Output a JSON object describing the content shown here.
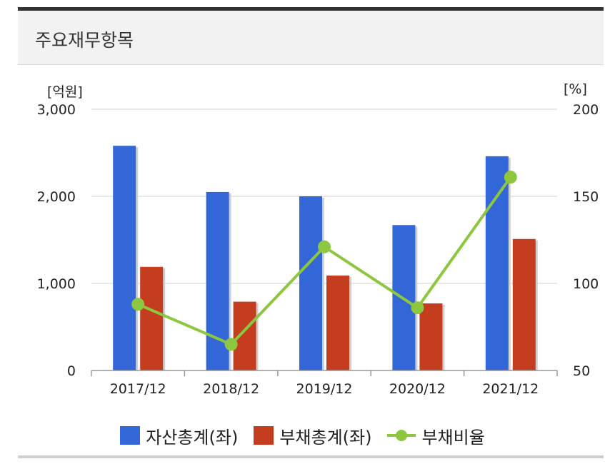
{
  "header": {
    "title": "주요재무항목"
  },
  "colors": {
    "asset": "#3366d6",
    "liability": "#c43d1f",
    "ratio": "#8dc63f"
  },
  "chart_data": {
    "type": "bar",
    "categories": [
      "2017/12",
      "2018/12",
      "2019/12",
      "2020/12",
      "2021/12"
    ],
    "series": [
      {
        "name": "자산총계(좌)",
        "type": "bar",
        "axis": "left",
        "values": [
          2580,
          2050,
          2000,
          1670,
          2460
        ]
      },
      {
        "name": "부채총계(좌)",
        "type": "bar",
        "axis": "left",
        "values": [
          1190,
          790,
          1090,
          770,
          1510
        ]
      },
      {
        "name": "부채비율",
        "type": "line",
        "axis": "right",
        "values": [
          88,
          65,
          121,
          86,
          161
        ]
      }
    ],
    "y_left": {
      "unit": "[억원]",
      "range": [
        0,
        3000
      ],
      "ticks": [
        "0",
        "1,000",
        "2,000",
        "3,000"
      ],
      "tick_values": [
        0,
        1000,
        2000,
        3000
      ]
    },
    "y_right": {
      "unit": "[%]",
      "range": [
        50,
        200
      ],
      "ticks": [
        "50",
        "100",
        "150",
        "200"
      ],
      "tick_values": [
        50,
        100,
        150,
        200
      ]
    },
    "grid": true,
    "legend_position": "bottom"
  }
}
